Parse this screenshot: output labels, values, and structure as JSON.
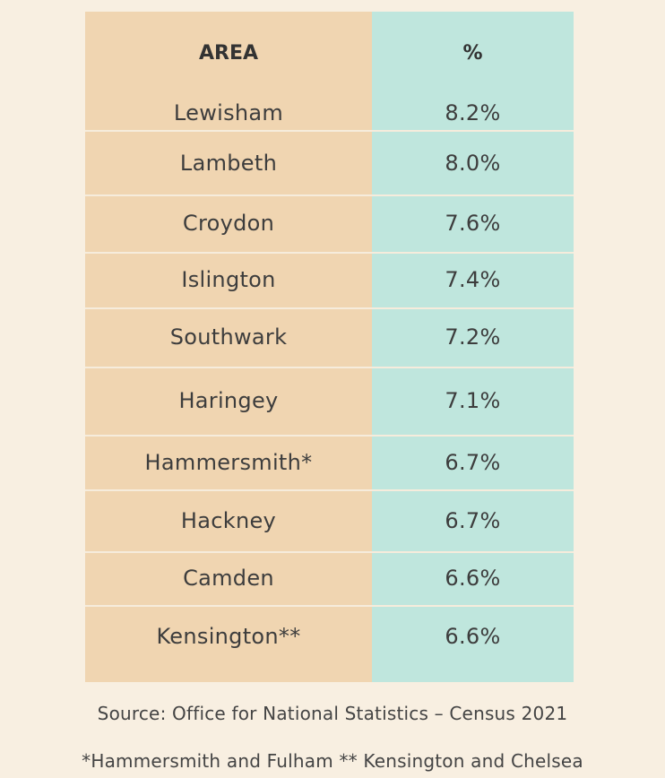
{
  "chart_data": {
    "type": "table",
    "columns": [
      "AREA",
      "%"
    ],
    "rows": [
      {
        "area": "Lewisham",
        "pct": "8.2%"
      },
      {
        "area": "Lambeth",
        "pct": "8.0%"
      },
      {
        "area": "Croydon",
        "pct": "7.6%"
      },
      {
        "area": "Islington",
        "pct": "7.4%"
      },
      {
        "area": "Southwark",
        "pct": "7.2%"
      },
      {
        "area": "Haringey",
        "pct": "7.1%"
      },
      {
        "area": "Hammersmith*",
        "pct": "6.7%"
      },
      {
        "area": "Hackney",
        "pct": "6.7%"
      },
      {
        "area": "Camden",
        "pct": "6.6%"
      },
      {
        "area": "Kensington**",
        "pct": "6.6%"
      }
    ]
  },
  "footnotes": {
    "source": "Source: Office for National Statistics – Census 2021",
    "abbreviations": "*Hammersmith and Fulham ** Kensington and Chelsea"
  },
  "colors": {
    "background": "#f8efe1",
    "area_column": "#f0d5b1",
    "percent_column": "#bfe6dd",
    "divider": "#f6ecdc",
    "text": "#3d3d3d"
  }
}
